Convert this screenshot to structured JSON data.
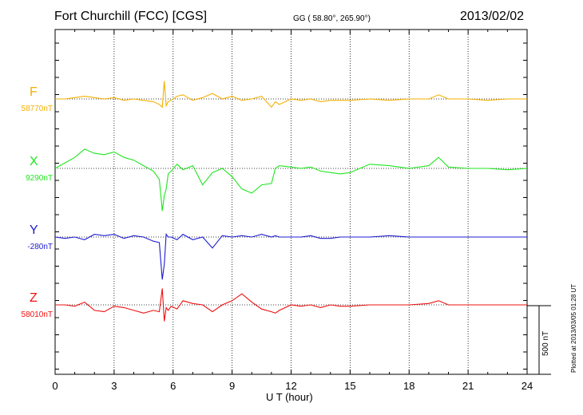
{
  "header": {
    "station": "Fort Churchill (FCC)  [CGS]",
    "coords": "GG ( 58.80°, 265.90°)",
    "date": "2013/02/02"
  },
  "footer": {
    "plotted": "Plotted at 2013/03/05 01:28 UT"
  },
  "chart_data": {
    "type": "line",
    "title": "Fort Churchill (FCC)  [CGS]",
    "xlabel": "U T (hour)",
    "ylabel": "",
    "xlim": [
      0,
      24
    ],
    "x_ticks": [
      "0",
      "3",
      "6",
      "9",
      "12",
      "15",
      "18",
      "21",
      "24"
    ],
    "grid": true,
    "scale_bar": {
      "label": "500 nT",
      "value_nT": 500
    },
    "series": [
      {
        "name": "F",
        "baseline": "58770nT",
        "color": "#f5b000",
        "x": [
          0,
          0.5,
          1,
          1.5,
          2,
          2.5,
          3,
          3.5,
          4,
          4.5,
          5,
          5.3,
          5.45,
          5.55,
          5.65,
          5.75,
          5.9,
          6.2,
          6.5,
          7,
          7.5,
          8,
          8.5,
          9,
          9.5,
          10,
          10.5,
          11,
          11.2,
          11.4,
          12,
          12.5,
          13,
          13.5,
          14,
          14.5,
          15,
          16,
          17,
          18,
          19,
          19.5,
          20,
          21,
          22,
          23,
          24
        ],
        "y": [
          0,
          0,
          10,
          20,
          10,
          0,
          10,
          -10,
          0,
          -10,
          -20,
          -40,
          -60,
          130,
          -50,
          -20,
          -10,
          20,
          30,
          -10,
          10,
          40,
          0,
          20,
          -10,
          0,
          20,
          -60,
          -20,
          -40,
          0,
          -10,
          0,
          -20,
          -10,
          -10,
          -10,
          0,
          -10,
          0,
          0,
          30,
          0,
          0,
          -10,
          0,
          0
        ]
      },
      {
        "name": "X",
        "baseline": "9290nT",
        "color": "#1ee61e",
        "x": [
          0,
          0.5,
          1,
          1.5,
          2,
          2.5,
          3,
          3.5,
          4,
          4.5,
          5,
          5.3,
          5.45,
          5.55,
          5.65,
          5.75,
          5.9,
          6.2,
          6.5,
          7,
          7.5,
          8,
          8.5,
          9,
          9.5,
          10,
          10.5,
          11,
          11.2,
          11.4,
          12,
          12.5,
          13,
          13.5,
          14,
          14.5,
          15,
          16,
          17,
          18,
          19,
          19.5,
          20,
          21,
          22,
          23,
          24
        ],
        "y": [
          0,
          40,
          80,
          140,
          110,
          100,
          120,
          80,
          60,
          20,
          -20,
          -80,
          -310,
          -200,
          -150,
          -40,
          -20,
          30,
          -10,
          20,
          -120,
          -30,
          0,
          -60,
          -150,
          -180,
          -120,
          -110,
          0,
          20,
          10,
          0,
          10,
          -20,
          -30,
          -40,
          -30,
          30,
          20,
          0,
          20,
          80,
          10,
          0,
          0,
          -10,
          0
        ]
      },
      {
        "name": "Y",
        "baseline": "-280nT",
        "color": "#1c1cd0",
        "x": [
          0,
          0.5,
          1,
          1.5,
          2,
          2.5,
          3,
          3.5,
          4,
          4.5,
          5,
          5.3,
          5.45,
          5.55,
          5.65,
          5.75,
          5.9,
          6.2,
          6.5,
          7,
          7.5,
          8,
          8.5,
          9,
          9.5,
          10,
          10.5,
          11,
          11.2,
          11.4,
          12,
          12.5,
          13,
          13.5,
          14,
          14.5,
          15,
          16,
          17,
          18,
          19,
          19.5,
          20,
          21,
          22,
          23,
          24
        ],
        "y": [
          0,
          -10,
          0,
          -20,
          20,
          10,
          20,
          -10,
          10,
          0,
          -30,
          -40,
          -310,
          -200,
          20,
          0,
          0,
          -20,
          20,
          -20,
          0,
          -80,
          10,
          0,
          10,
          0,
          20,
          0,
          10,
          0,
          0,
          0,
          10,
          -10,
          -10,
          0,
          0,
          0,
          10,
          0,
          0,
          0,
          0,
          0,
          0,
          0,
          0
        ]
      },
      {
        "name": "Z",
        "baseline": "58010nT",
        "color": "#ee1010",
        "x": [
          0,
          0.5,
          1,
          1.5,
          2,
          2.5,
          3,
          3.5,
          4,
          4.5,
          5,
          5.3,
          5.45,
          5.55,
          5.65,
          5.75,
          5.9,
          6.2,
          6.5,
          7,
          7.5,
          8,
          8.5,
          9,
          9.5,
          10,
          10.5,
          11,
          11.2,
          11.4,
          12,
          12.5,
          13,
          13.5,
          14,
          14.5,
          15,
          16,
          17,
          18,
          19,
          19.5,
          20,
          21,
          22,
          23,
          24
        ],
        "y": [
          0,
          0,
          -10,
          20,
          -40,
          -50,
          -10,
          -20,
          -40,
          -60,
          -40,
          -50,
          120,
          -120,
          -20,
          -40,
          -10,
          -30,
          30,
          10,
          0,
          -50,
          0,
          30,
          80,
          20,
          -30,
          -50,
          -60,
          -40,
          0,
          -10,
          0,
          -20,
          0,
          -10,
          -10,
          0,
          0,
          0,
          10,
          30,
          0,
          0,
          0,
          0,
          0
        ]
      }
    ]
  }
}
